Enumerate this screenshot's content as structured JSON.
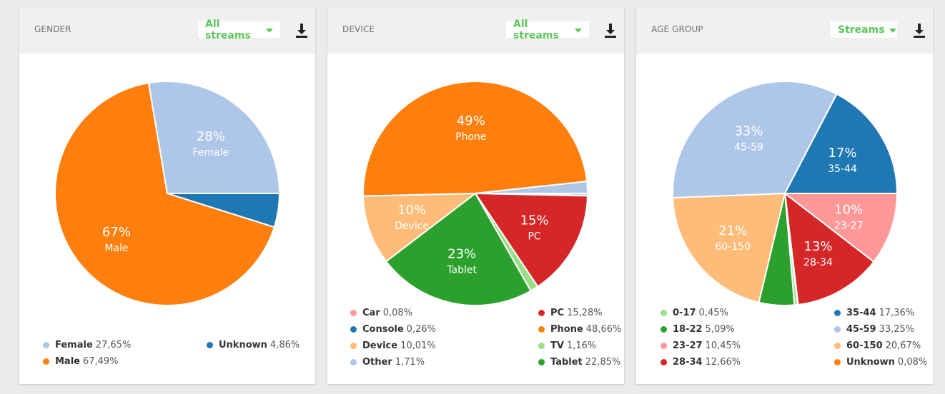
{
  "panels": [
    {
      "title": "GENDER",
      "selector": "All streams",
      "chart_data": {
        "type": "pie",
        "slices": [
          {
            "name": "Unknown",
            "value": 4.86,
            "color": "#1f77b4"
          },
          {
            "name": "Male",
            "value": 67.49,
            "color": "#ff7f0e",
            "label_pct": "67%",
            "label_name": "Male"
          },
          {
            "name": "Female",
            "value": 27.65,
            "color": "#aec7e8",
            "label_pct": "28%",
            "label_name": "Female"
          }
        ]
      },
      "legend": [
        {
          "name": "Female",
          "value": "27,65%",
          "color": "#aec7e8"
        },
        {
          "name": "Unknown",
          "value": "4,86%",
          "color": "#1f77b4"
        },
        {
          "name": "Male",
          "value": "67,49%",
          "color": "#ff7f0e"
        }
      ]
    },
    {
      "title": "DEVICE",
      "selector": "All streams",
      "chart_data": {
        "type": "pie",
        "slices": [
          {
            "name": "Car",
            "value": 0.08,
            "color": "#ff9896"
          },
          {
            "name": "Console",
            "value": 0.26,
            "color": "#1f77b4"
          },
          {
            "name": "PC",
            "value": 15.28,
            "color": "#d62728",
            "label_pct": "15%",
            "label_name": "PC"
          },
          {
            "name": "TV",
            "value": 1.16,
            "color": "#98df8a"
          },
          {
            "name": "Tablet",
            "value": 22.85,
            "color": "#2ca02c",
            "label_pct": "23%",
            "label_name": "Tablet"
          },
          {
            "name": "Device",
            "value": 10.01,
            "color": "#ffbb78",
            "label_pct": "10%",
            "label_name": "Device"
          },
          {
            "name": "Phone",
            "value": 48.66,
            "color": "#ff7f0e",
            "label_pct": "49%",
            "label_name": "Phone"
          },
          {
            "name": "Other",
            "value": 1.71,
            "color": "#aec7e8"
          }
        ]
      },
      "legend": [
        {
          "name": "Car",
          "value": "0,08%",
          "color": "#ff9896"
        },
        {
          "name": "PC",
          "value": "15,28%",
          "color": "#d62728"
        },
        {
          "name": "Console",
          "value": "0,26%",
          "color": "#1f77b4"
        },
        {
          "name": "Phone",
          "value": "48,66%",
          "color": "#ff7f0e"
        },
        {
          "name": "Device",
          "value": "10,01%",
          "color": "#ffbb78"
        },
        {
          "name": "TV",
          "value": "1,16%",
          "color": "#98df8a"
        },
        {
          "name": "Other",
          "value": "1,71%",
          "color": "#aec7e8"
        },
        {
          "name": "Tablet",
          "value": "22,85%",
          "color": "#2ca02c"
        }
      ]
    },
    {
      "title": "AGE GROUP",
      "selector": "Streams",
      "chart_data": {
        "type": "pie",
        "slices": [
          {
            "name": "23-27",
            "value": 10.45,
            "color": "#ff9896",
            "label_pct": "10%",
            "label_name": "23-27"
          },
          {
            "name": "28-34",
            "value": 12.66,
            "color": "#d62728",
            "label_pct": "13%",
            "label_name": "28-34"
          },
          {
            "name": "Unknown",
            "value": 0.08,
            "color": "#ff7f0e"
          },
          {
            "name": "0-17",
            "value": 0.45,
            "color": "#98df8a"
          },
          {
            "name": "18-22",
            "value": 5.09,
            "color": "#2ca02c"
          },
          {
            "name": "60-150",
            "value": 20.67,
            "color": "#ffbb78",
            "label_pct": "21%",
            "label_name": "60-150"
          },
          {
            "name": "45-59",
            "value": 33.25,
            "color": "#aec7e8",
            "label_pct": "33%",
            "label_name": "45-59"
          },
          {
            "name": "35-44",
            "value": 17.36,
            "color": "#1f77b4",
            "label_pct": "17%",
            "label_name": "35-44"
          }
        ]
      },
      "legend": [
        {
          "name": "0-17",
          "value": "0,45%",
          "color": "#98df8a"
        },
        {
          "name": "35-44",
          "value": "17,36%",
          "color": "#1f77b4"
        },
        {
          "name": "18-22",
          "value": "5,09%",
          "color": "#2ca02c"
        },
        {
          "name": "45-59",
          "value": "33,25%",
          "color": "#aec7e8"
        },
        {
          "name": "23-27",
          "value": "10,45%",
          "color": "#ff9896"
        },
        {
          "name": "60-150",
          "value": "20,67%",
          "color": "#ffbb78"
        },
        {
          "name": "28-34",
          "value": "12,66%",
          "color": "#d62728"
        },
        {
          "name": "Unknown",
          "value": "0,08%",
          "color": "#ff7f0e"
        }
      ]
    }
  ]
}
